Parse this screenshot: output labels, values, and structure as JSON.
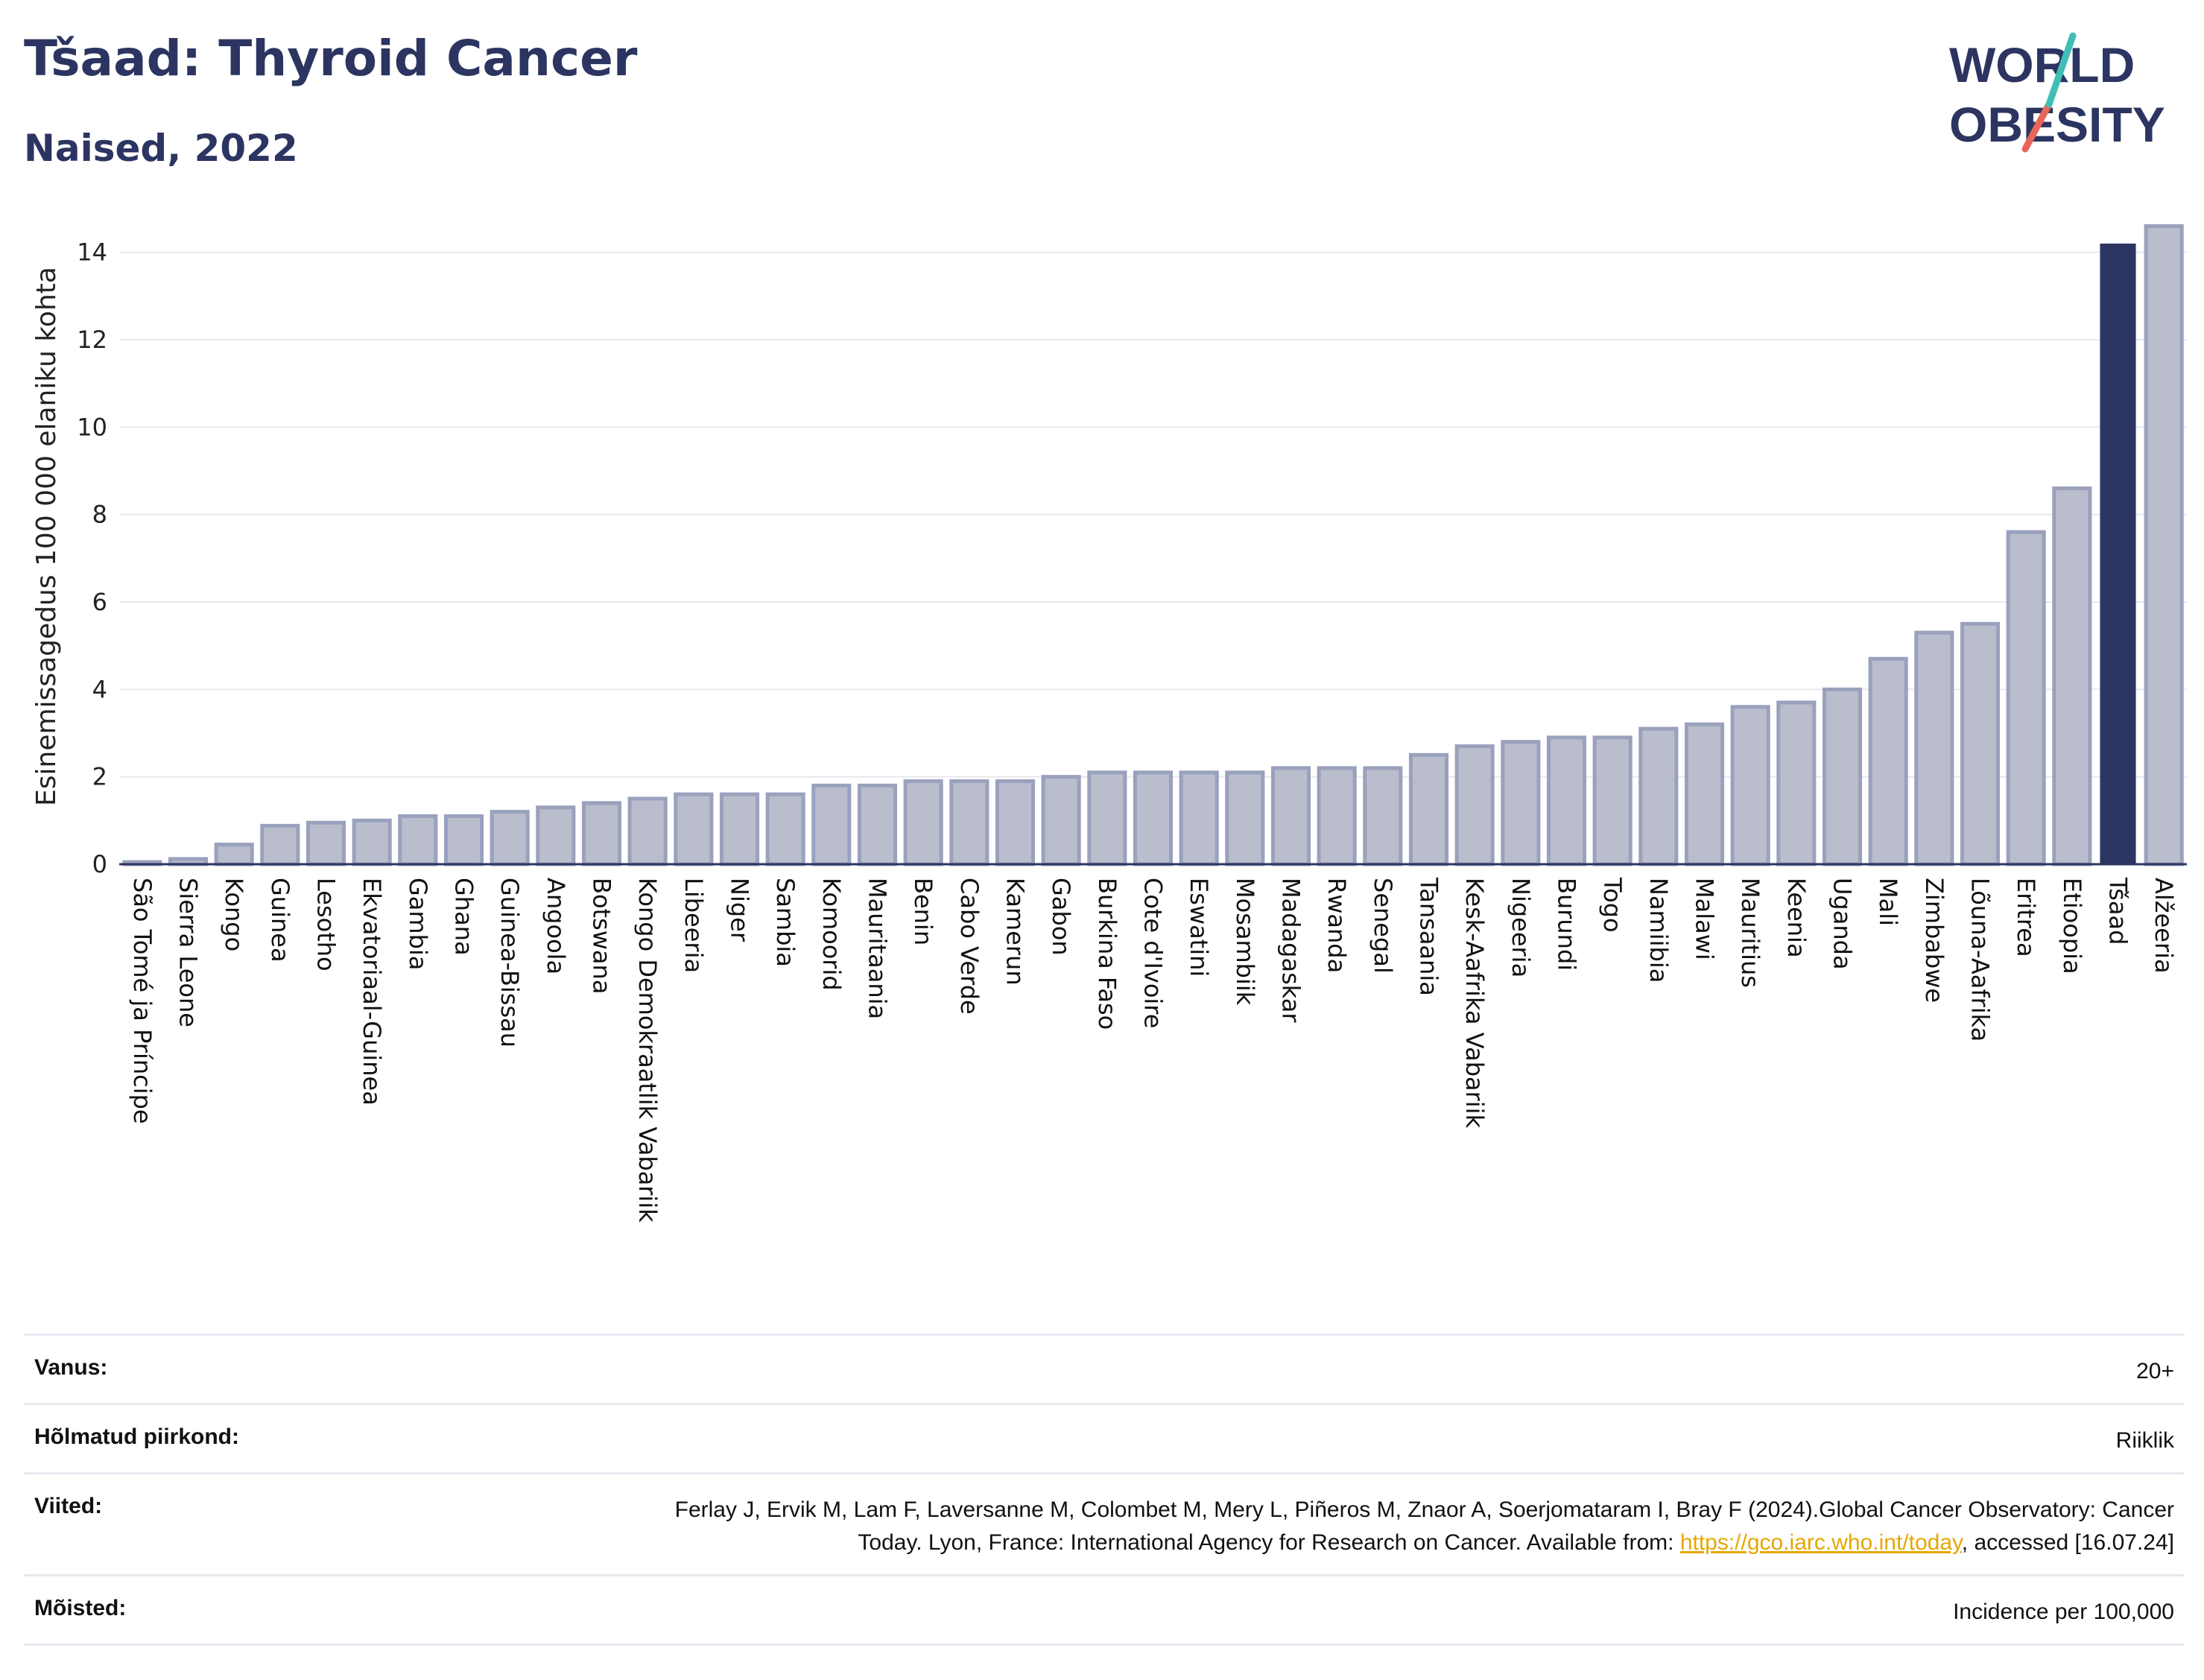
{
  "header": {
    "title": "Tšaad: Thyroid Cancer",
    "subtitle": "Naised, 2022"
  },
  "logo": {
    "line1": "WORLD",
    "line2": "OBESITY"
  },
  "chart_data": {
    "type": "bar",
    "ylabel": "Esinemissagedus 100 000 elaniku kohta",
    "ylim": [
      0,
      15
    ],
    "yticks": [
      0,
      2,
      4,
      6,
      8,
      10,
      12,
      14
    ],
    "highlight": "Tšaad",
    "colors": {
      "bar": "#b9bdcc",
      "bar_edge": "#9aa1bd",
      "highlight": "#2c3561"
    },
    "categories": [
      "São Tomé ja Príncipe",
      "Sierra Leone",
      "Kongo",
      "Guinea",
      "Lesotho",
      "Ekvatoriaal-Guinea",
      "Gambia",
      "Ghana",
      "Guinea-Bissau",
      "Angoola",
      "Botswana",
      "Kongo Demokraatlik Vabariik",
      "Libeeria",
      "Niger",
      "Sambia",
      "Komoorid",
      "Mauritaania",
      "Benin",
      "Cabo Verde",
      "Kamerun",
      "Gabon",
      "Burkina Faso",
      "Cote d'Ivoire",
      "Eswatini",
      "Mosambiik",
      "Madagaskar",
      "Rwanda",
      "Senegal",
      "Tansaania",
      "Kesk-Aafrika Vabariik",
      "Nigeeria",
      "Burundi",
      "Togo",
      "Namiibia",
      "Malawi",
      "Mauritius",
      "Keenia",
      "Uganda",
      "Mali",
      "Zimbabwe",
      "Lõuna-Aafrika",
      "Eritrea",
      "Etioopia",
      "Tšaad",
      "Alžeeria"
    ],
    "values": [
      0.05,
      0.12,
      0.45,
      0.88,
      0.95,
      1.0,
      1.1,
      1.1,
      1.2,
      1.3,
      1.4,
      1.5,
      1.6,
      1.6,
      1.6,
      1.8,
      1.8,
      1.9,
      1.9,
      1.9,
      2.0,
      2.1,
      2.1,
      2.1,
      2.1,
      2.2,
      2.2,
      2.2,
      2.5,
      2.7,
      2.8,
      2.9,
      2.9,
      3.1,
      3.2,
      3.6,
      3.7,
      4.0,
      4.7,
      5.3,
      5.5,
      7.6,
      8.6,
      14.2,
      14.6
    ]
  },
  "meta": {
    "age_label": "Vanus:",
    "age_value": "20+",
    "region_label": "Hõlmatud piirkond:",
    "region_value": "Riiklik",
    "refs_label": "Viited:",
    "refs_text": "Ferlay J, Ervik M, Lam F, Laversanne M, Colombet M, Mery L, Piñeros M, Znaor A, Soerjomataram I, Bray F (2024).Global Cancer Observatory: Cancer Today. Lyon, France: International Agency for Research on Cancer. Available from:",
    "refs_link": "https://gco.iarc.who.int/today",
    "refs_tail": ", accessed [16.07.24]",
    "def_label": "Mõisted:",
    "def_value": "Incidence per 100,000"
  }
}
